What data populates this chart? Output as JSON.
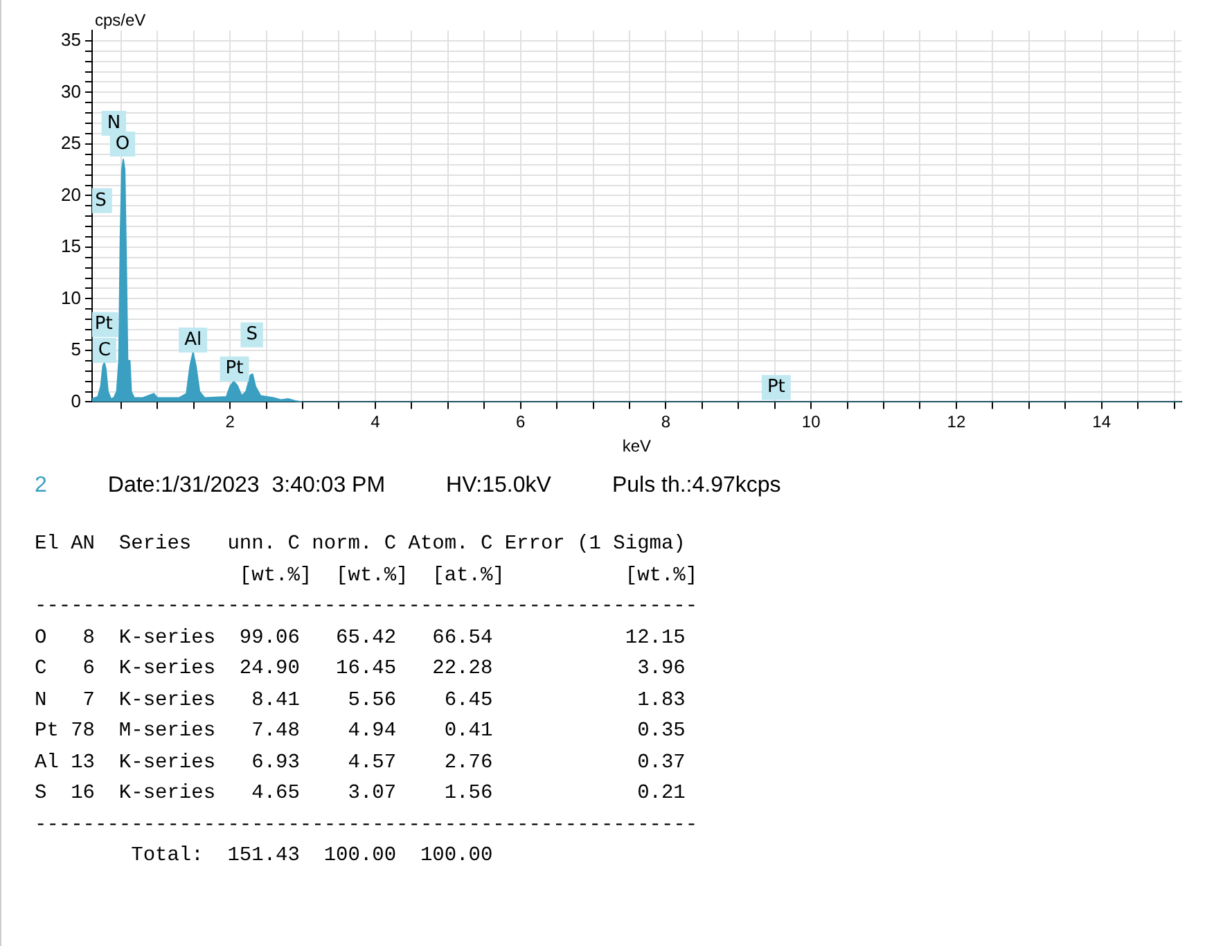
{
  "chart_data": {
    "type": "area",
    "xlabel": "keV",
    "ylabel": "cps/eV",
    "x": [
      0.1,
      0.18,
      0.22,
      0.25,
      0.27,
      0.29,
      0.32,
      0.36,
      0.4,
      0.44,
      0.47,
      0.49,
      0.51,
      0.53,
      0.55,
      0.57,
      0.59,
      0.62,
      0.64,
      0.68,
      0.8,
      0.95,
      1.0,
      1.3,
      1.4,
      1.45,
      1.49,
      1.53,
      1.58,
      1.65,
      1.95,
      2.0,
      2.05,
      2.1,
      2.16,
      2.22,
      2.28,
      2.31,
      2.35,
      2.42,
      2.6,
      2.7,
      2.8,
      2.9,
      3.0,
      15.1
    ],
    "series": [
      {
        "color": "#3a9fc1",
        "values": [
          0.3,
          0.5,
          1.5,
          3.5,
          3.8,
          3.2,
          1.0,
          0.3,
          0.4,
          1.0,
          4,
          16,
          22.5,
          23.5,
          22.5,
          14,
          4,
          4,
          1,
          0.4,
          0.4,
          0.8,
          0.4,
          0.4,
          0.8,
          3.5,
          4.8,
          3.5,
          1.0,
          0.4,
          0.5,
          1.5,
          2.0,
          1.6,
          0.6,
          1.0,
          2.6,
          2.7,
          1.5,
          0.6,
          0.4,
          0.2,
          0.3,
          0.1,
          0,
          0
        ]
      }
    ],
    "xlim": [
      0.1,
      15.1
    ],
    "ylim": [
      0,
      36
    ],
    "xticks": [
      {
        "value": 0.5,
        "label": null
      },
      {
        "value": 1,
        "label": null
      },
      {
        "value": 1.5,
        "label": null
      },
      2,
      {
        "value": 2.5,
        "label": null
      },
      {
        "value": 3,
        "label": null
      },
      {
        "value": 3.5,
        "label": null
      },
      4,
      {
        "value": 4.5,
        "label": null
      },
      {
        "value": 5,
        "label": null
      },
      {
        "value": 5.5,
        "label": null
      },
      6,
      {
        "value": 6.5,
        "label": null
      },
      {
        "value": 7,
        "label": null
      },
      {
        "value": 7.5,
        "label": null
      },
      8,
      {
        "value": 8.5,
        "label": null
      },
      {
        "value": 9,
        "label": null
      },
      {
        "value": 9.5,
        "label": null
      },
      10,
      {
        "value": 10.5,
        "label": null
      },
      {
        "value": 11,
        "label": null
      },
      {
        "value": 11.5,
        "label": null
      },
      12,
      {
        "value": 12.5,
        "label": null
      },
      {
        "value": 13,
        "label": null
      },
      {
        "value": 13.5,
        "label": null
      },
      14,
      {
        "value": 14.5,
        "label": null
      },
      {
        "value": 15,
        "label": null
      }
    ],
    "yticks": [
      0,
      {
        "value": 1,
        "label": null
      },
      {
        "value": 2,
        "label": null
      },
      {
        "value": 3,
        "label": null
      },
      {
        "value": 4,
        "label": null
      },
      5,
      {
        "value": 6,
        "label": null
      },
      {
        "value": 7,
        "label": null
      },
      {
        "value": 8,
        "label": null
      },
      {
        "value": 9,
        "label": null
      },
      10,
      {
        "value": 11,
        "label": null
      },
      {
        "value": 12,
        "label": null
      },
      {
        "value": 13,
        "label": null
      },
      {
        "value": 14,
        "label": null
      },
      15,
      {
        "value": 16,
        "label": null
      },
      {
        "value": 17,
        "label": null
      },
      {
        "value": 18,
        "label": null
      },
      {
        "value": 19,
        "label": null
      },
      20,
      {
        "value": 21,
        "label": null
      },
      {
        "value": 22,
        "label": null
      },
      {
        "value": 23,
        "label": null
      },
      {
        "value": 24,
        "label": null
      },
      25,
      {
        "value": 26,
        "label": null
      },
      {
        "value": 27,
        "label": null
      },
      {
        "value": 28,
        "label": null
      },
      {
        "value": 29,
        "label": null
      },
      30,
      {
        "value": 31,
        "label": null
      },
      {
        "value": 32,
        "label": null
      },
      {
        "value": 33,
        "label": null
      },
      {
        "value": 34,
        "label": null
      },
      35
    ],
    "grid": true,
    "legend": false,
    "annotations": [
      {
        "text": "N",
        "x": 0.4,
        "y": 27
      },
      {
        "text": "O",
        "x": 0.52,
        "y": 25
      },
      {
        "text": "S",
        "x": 0.22,
        "y": 19.5
      },
      {
        "text": "Pt",
        "x": 0.26,
        "y": 7.5
      },
      {
        "text": "C",
        "x": 0.27,
        "y": 5
      },
      {
        "text": "Al",
        "x": 1.49,
        "y": 6
      },
      {
        "text": "S",
        "x": 2.3,
        "y": 6.5
      },
      {
        "text": "Pt",
        "x": 2.06,
        "y": 3.2
      },
      {
        "text": "Pt",
        "x": 9.52,
        "y": 1.4
      },
      "2",
      "Date:1/31/2023  3:40:03 PM",
      "HV:15.0kV",
      "Puls th.:4.97kcps",
      "El AN  Series   unn. C norm. C Atom. C Error (1 Sigma)",
      "                 [wt.%]  [wt.%]  [at.%]          [wt.%]",
      "-------------------------------------------------------",
      "O   8  K-series  99.06   65.42   66.54           12.15",
      "C   6  K-series  24.90   16.45   22.28            3.96",
      "N   7  K-series   8.41    5.56    6.45            1.83",
      "Pt 78  M-series   7.48    4.94    0.41            0.35",
      "Al 13  K-series   6.93    4.57    2.76            0.37",
      "S  16  K-series   4.65    3.07    1.56            0.21",
      "-------------------------------------------------------",
      "        Total:  151.43  100.00  100.00"
    ]
  }
}
